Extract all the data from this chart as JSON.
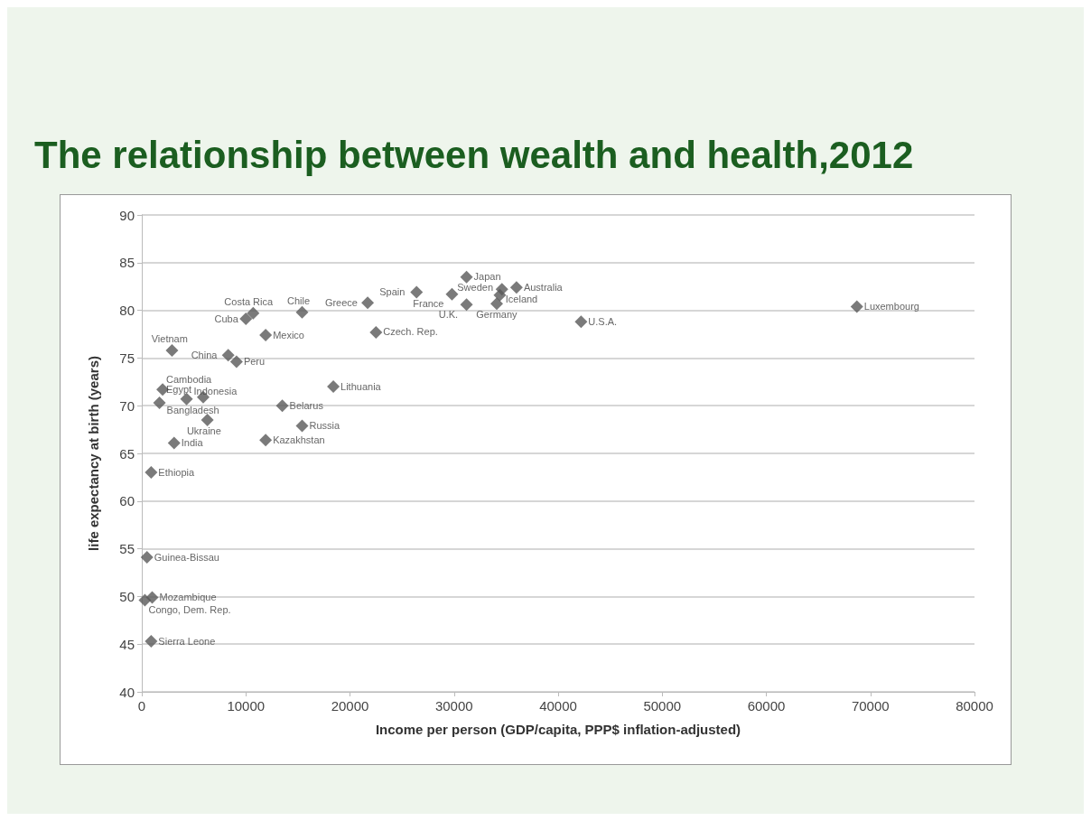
{
  "chart_data": {
    "type": "scatter",
    "title": "The relationship between wealth and health,2012",
    "xlabel": "Income per person (GDP/capita, PPP$ inflation-adjusted)",
    "ylabel": "life expectancy at birth (years)",
    "xlim": [
      0,
      80000
    ],
    "xticks": [
      0,
      10000,
      20000,
      30000,
      40000,
      50000,
      60000,
      70000,
      80000
    ],
    "ylim": [
      40,
      90
    ],
    "yticks": [
      40,
      45,
      50,
      55,
      60,
      65,
      70,
      75,
      80,
      85,
      90
    ],
    "grid": "y",
    "marker": "diamond",
    "series": [
      {
        "color": "#595959",
        "x": [
          68700,
          42200,
          31200,
          34600,
          36000,
          34400,
          34100,
          29800,
          31200,
          26400,
          21700,
          22500,
          10700,
          10000,
          15400,
          11900,
          8300,
          9100,
          2900,
          18400,
          13500,
          15400,
          11900,
          2000,
          1700,
          4300,
          5900,
          6300,
          3100,
          900,
          500,
          1000,
          300,
          900
        ],
        "values": [
          80.4,
          78.8,
          83.5,
          82.2,
          82.4,
          81.6,
          80.7,
          81.7,
          80.6,
          81.9,
          80.8,
          77.7,
          79.7,
          79.1,
          79.8,
          77.4,
          75.3,
          74.6,
          75.8,
          72.0,
          70.0,
          67.9,
          66.4,
          71.7,
          70.3,
          70.7,
          70.9,
          68.5,
          66.1,
          63.0,
          54.1,
          49.9,
          49.6,
          45.3
        ]
      }
    ],
    "annotations": [
      {
        "text": "Luxembourg",
        "x": 68700,
        "y": 80.4
      },
      {
        "text": "U.S.A.",
        "x": 42200,
        "y": 78.8
      },
      {
        "text": "Japan",
        "x": 31200,
        "y": 83.5
      },
      {
        "text": "Iceland",
        "x": 34600,
        "y": 82.2
      },
      {
        "text": "Australia",
        "x": 36000,
        "y": 82.4
      },
      {
        "text": "Sweden",
        "x": 34400,
        "y": 81.6
      },
      {
        "text": "Germany",
        "x": 34100,
        "y": 80.7
      },
      {
        "text": "France",
        "x": 29800,
        "y": 81.7
      },
      {
        "text": "U.K.",
        "x": 31200,
        "y": 80.6
      },
      {
        "text": "Spain",
        "x": 26400,
        "y": 81.9
      },
      {
        "text": "Greece",
        "x": 21700,
        "y": 80.8
      },
      {
        "text": "Czech. Rep.",
        "x": 22500,
        "y": 77.7
      },
      {
        "text": "Costa Rica",
        "x": 10700,
        "y": 79.7
      },
      {
        "text": "Cuba",
        "x": 10000,
        "y": 79.1
      },
      {
        "text": "Chile",
        "x": 15400,
        "y": 79.8
      },
      {
        "text": "Mexico",
        "x": 11900,
        "y": 77.4
      },
      {
        "text": "China",
        "x": 8300,
        "y": 75.3
      },
      {
        "text": "Peru",
        "x": 9100,
        "y": 74.6
      },
      {
        "text": "Vietnam",
        "x": 2900,
        "y": 75.8
      },
      {
        "text": "Lithuania",
        "x": 18400,
        "y": 72.0
      },
      {
        "text": "Belarus",
        "x": 13500,
        "y": 70.0
      },
      {
        "text": "Russia",
        "x": 15400,
        "y": 67.9
      },
      {
        "text": "Kazakhstan",
        "x": 11900,
        "y": 66.4
      },
      {
        "text": "Cambodia",
        "x": 2000,
        "y": 71.7
      },
      {
        "text": "Bangladesh",
        "x": 1700,
        "y": 70.3
      },
      {
        "text": "Indonesia",
        "x": 4300,
        "y": 70.7
      },
      {
        "text": "Egypt",
        "x": 5900,
        "y": 70.9
      },
      {
        "text": "Ukraine",
        "x": 6300,
        "y": 68.5
      },
      {
        "text": "India",
        "x": 3100,
        "y": 66.1
      },
      {
        "text": "Ethiopia",
        "x": 900,
        "y": 63.0
      },
      {
        "text": "Guinea-Bissau",
        "x": 500,
        "y": 54.1
      },
      {
        "text": "Mozambique",
        "x": 1000,
        "y": 49.9
      },
      {
        "text": "Congo, Dem. Rep.",
        "x": 300,
        "y": 49.6
      },
      {
        "text": "Sierra Leone",
        "x": 900,
        "y": 45.3
      }
    ]
  }
}
